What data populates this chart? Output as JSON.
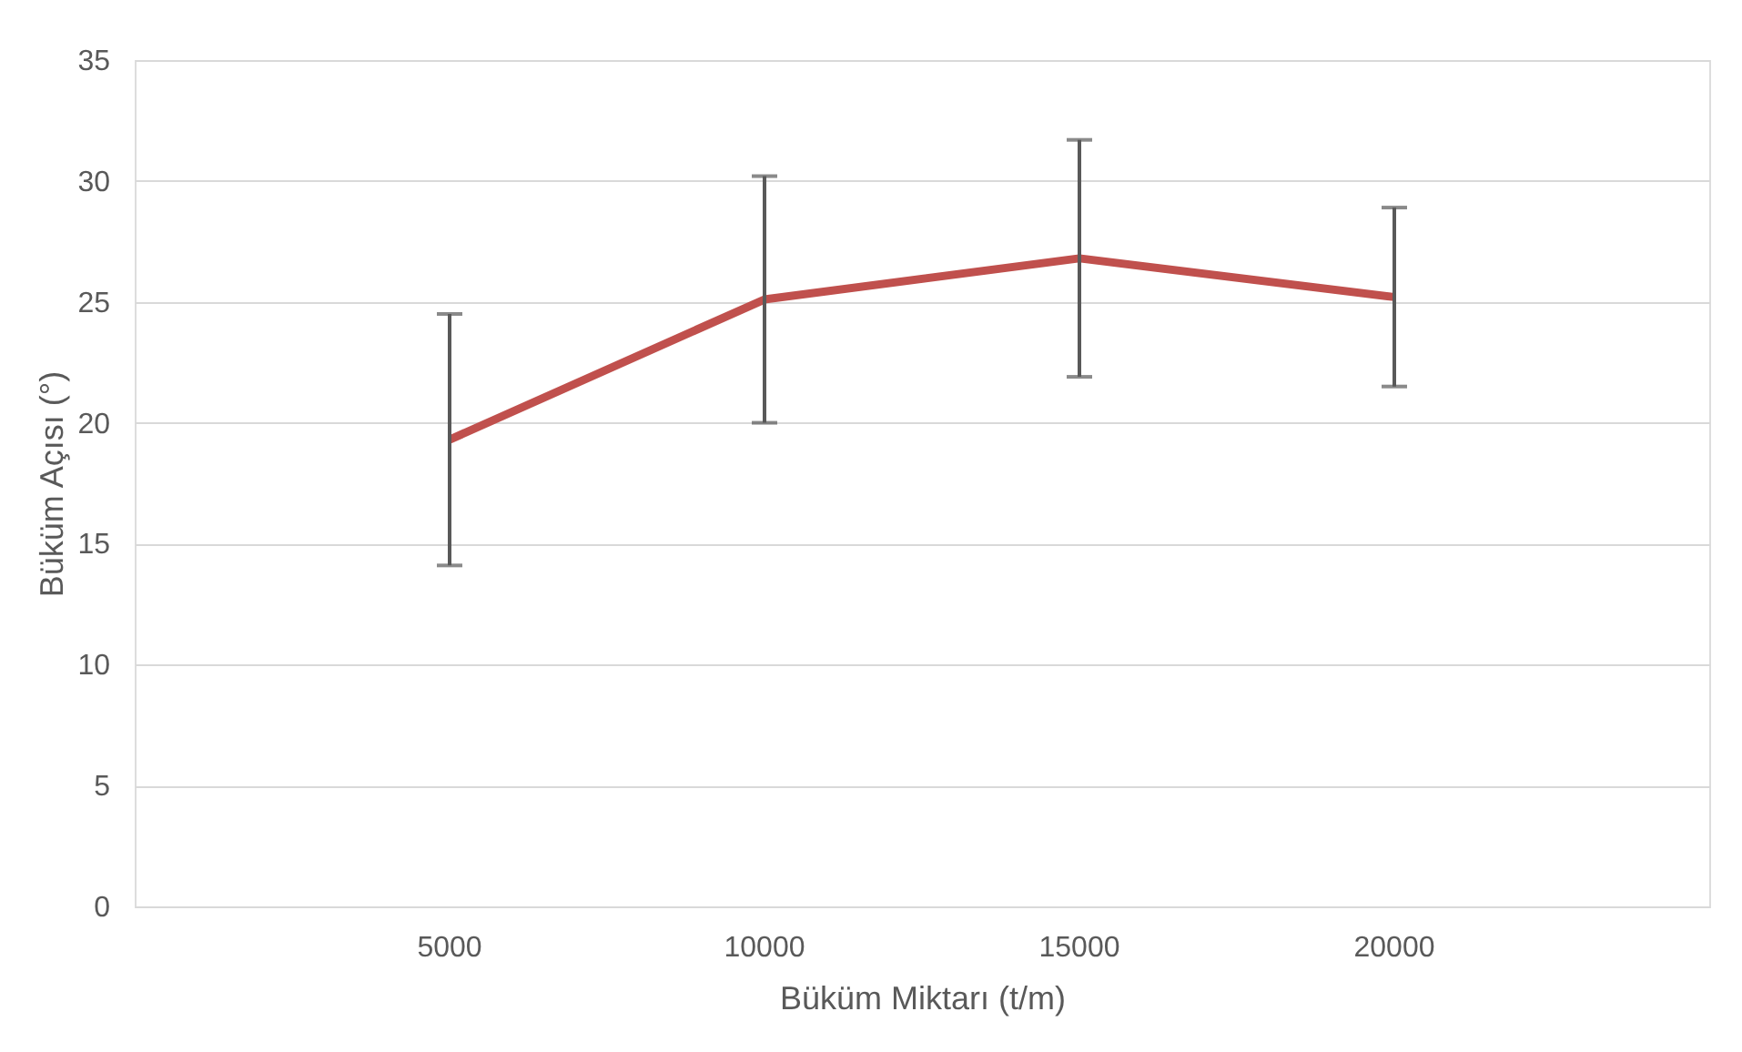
{
  "chart_data": {
    "type": "line",
    "xlabel": "Büküm Miktarı (t/m)",
    "ylabel": "Büküm Açısı (°)",
    "categories": [
      "5000",
      "10000",
      "15000",
      "20000"
    ],
    "series": [
      {
        "color": "#c0504d",
        "values": [
          19.3,
          25.1,
          26.8,
          25.2
        ],
        "errors": [
          5.2,
          5.1,
          4.9,
          3.7
        ]
      }
    ],
    "ylim": [
      0,
      35
    ],
    "yticks": [
      0,
      5,
      10,
      15,
      20,
      25,
      30,
      35
    ],
    "grid": "y",
    "marker": "none",
    "line_style": "solid"
  }
}
